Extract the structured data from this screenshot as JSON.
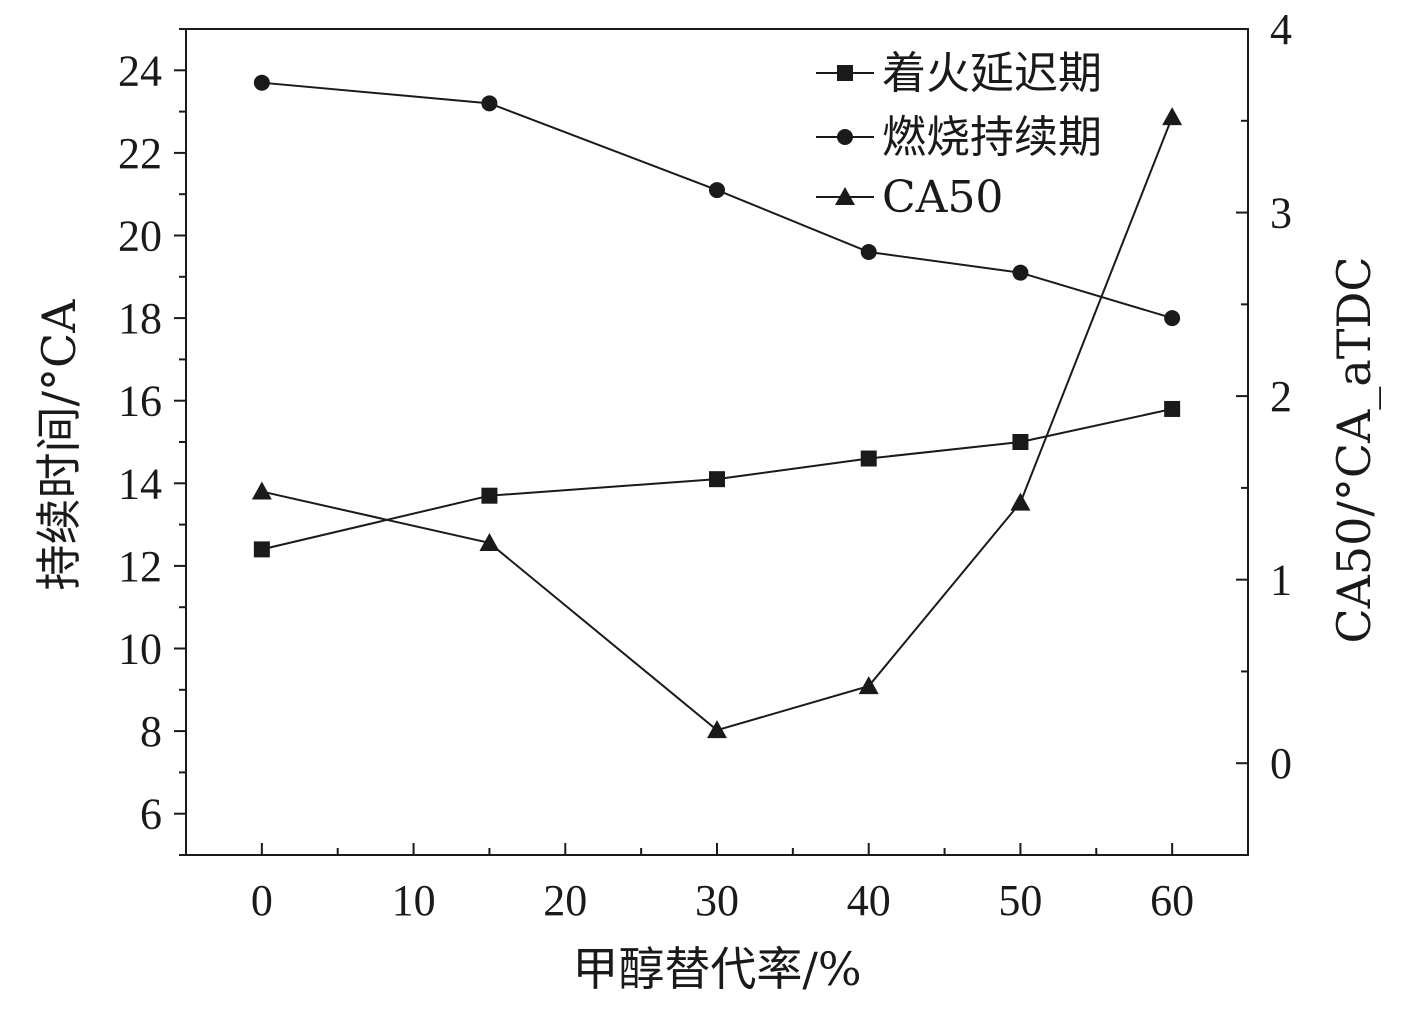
{
  "chart_data": {
    "type": "line",
    "x": [
      0,
      15,
      30,
      40,
      50,
      60
    ],
    "xlabel": "甲醇替代率/%",
    "xlim": [
      -5,
      65
    ],
    "xticks": [
      0,
      10,
      20,
      30,
      40,
      50,
      60
    ],
    "ylabel": "持续时间/°CA",
    "ylim": [
      5,
      25
    ],
    "yticks": [
      6,
      8,
      10,
      12,
      14,
      16,
      18,
      20,
      22,
      24
    ],
    "y2label": "CA50/°CA_aTDC",
    "y2lim": [
      -0.5,
      4
    ],
    "y2ticks": [
      0,
      1,
      2,
      3,
      4
    ],
    "legend_position": "top-right",
    "grid": false,
    "series": [
      {
        "name": "着火延迟期",
        "axis": "left",
        "marker": "square",
        "values": [
          12.4,
          13.7,
          14.1,
          14.6,
          15.0,
          15.8
        ]
      },
      {
        "name": "燃烧持续期",
        "axis": "left",
        "marker": "circle",
        "values": [
          23.7,
          23.2,
          21.1,
          19.6,
          19.1,
          18.0
        ]
      },
      {
        "name": "CA50",
        "axis": "right",
        "marker": "triangle",
        "values": [
          1.48,
          1.2,
          0.18,
          0.42,
          1.42,
          3.52
        ]
      }
    ]
  }
}
